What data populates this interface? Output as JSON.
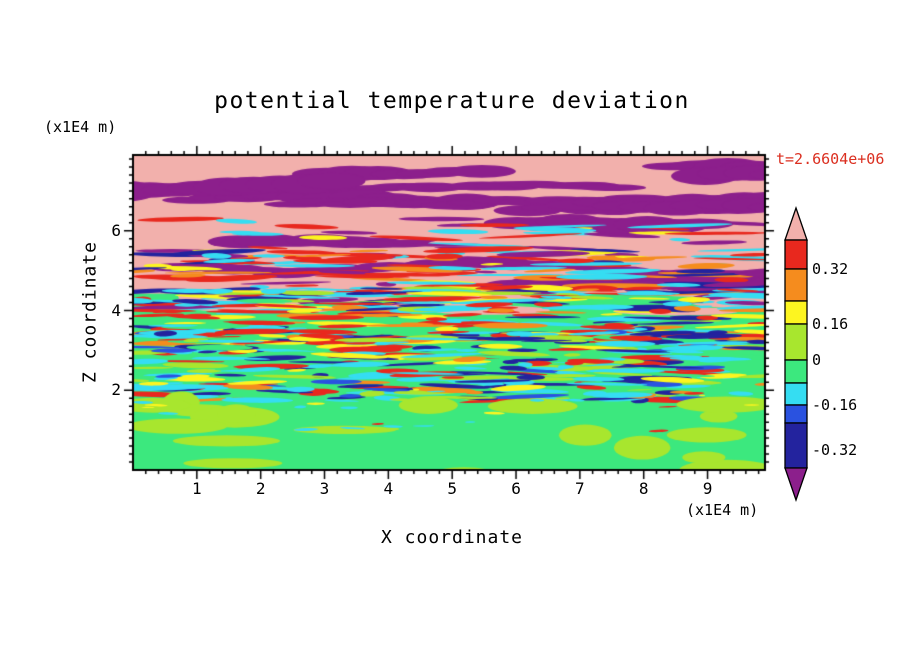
{
  "chart_data": {
    "type": "heatmap",
    "title": "potential temperature deviation",
    "xlabel": "X coordinate",
    "ylabel": "Z coordinate",
    "x_unit": "(x1E4 m)",
    "y_unit": "(x1E4 m)",
    "time_label": "t=2.6604e+06",
    "x_ticks": [
      1,
      2,
      3,
      4,
      5,
      6,
      7,
      8,
      9
    ],
    "y_ticks": [
      2,
      4,
      6
    ],
    "xlim": [
      0,
      9.9
    ],
    "ylim": [
      0,
      7.9
    ],
    "grid": false,
    "legend_position": "right-colorbar",
    "colorbar": {
      "top_arrow_color": "#f2b0ac",
      "bottom_arrow_color": "#8c1f8c",
      "segments": [
        {
          "color": "#e8281e",
          "h": 29
        },
        {
          "color": "#f58c1e",
          "h": 32
        },
        {
          "color": "#fdf520",
          "h": 23
        },
        {
          "color": "#a8e62e",
          "h": 36
        },
        {
          "color": "#3ce87e",
          "h": 23
        },
        {
          "color": "#35ddf2",
          "h": 22
        },
        {
          "color": "#2a52e0",
          "h": 18
        },
        {
          "color": "#23239e",
          "h": 45
        }
      ],
      "labels": [
        {
          "text": "0.32",
          "offset": 29
        },
        {
          "text": "0.16",
          "offset": 84
        },
        {
          "text": "0",
          "offset": 120
        },
        {
          "text": "-0.16",
          "offset": 165
        },
        {
          "text": "-0.32",
          "offset": 210
        }
      ]
    },
    "field_texture": {
      "seed": 1337,
      "background": "#3ce87e",
      "regions": [
        {
          "name": "pink-base",
          "type": "rect",
          "y0": 0.0,
          "y1": 0.44,
          "color": "#f2b0ac"
        },
        {
          "name": "pink-ragged-edge",
          "type": "blobs",
          "y0": 0.4,
          "y1": 0.5,
          "count": 26,
          "rx": [
            25,
            80
          ],
          "ry": [
            4,
            10
          ],
          "color": "#f2b0ac"
        },
        {
          "name": "purple-bands",
          "type": "bands",
          "y0": 0.02,
          "y1": 0.42,
          "count": 18,
          "len": [
            120,
            460
          ],
          "th": [
            7,
            16
          ],
          "color": "#8c1f8c"
        },
        {
          "name": "upper-wisps",
          "type": "streaks",
          "y0": 0.2,
          "y1": 0.36,
          "count": 45,
          "len": [
            20,
            110
          ],
          "th": [
            2,
            5
          ],
          "colors": [
            "#35ddf2",
            "#e8281e",
            "#fdf520",
            "#8c1f8c"
          ],
          "weights": [
            0.4,
            0.25,
            0.1,
            0.25
          ]
        },
        {
          "name": "transition-streaks",
          "type": "streaks",
          "y0": 0.3,
          "y1": 0.5,
          "count": 150,
          "len": [
            20,
            120
          ],
          "th": [
            2,
            6
          ],
          "colors": [
            "#e8281e",
            "#f58c1e",
            "#35ddf2",
            "#fdf520",
            "#8c1f8c",
            "#23239e"
          ],
          "weights": [
            0.26,
            0.15,
            0.22,
            0.09,
            0.16,
            0.12
          ]
        },
        {
          "name": "mid-upper-streaks",
          "type": "streaks",
          "y0": 0.42,
          "y1": 0.6,
          "count": 220,
          "len": [
            16,
            95
          ],
          "th": [
            2,
            6
          ],
          "colors": [
            "#e8281e",
            "#f58c1e",
            "#fdf520",
            "#35ddf2",
            "#23239e",
            "#a8e62e",
            "#3ce87e"
          ],
          "weights": [
            0.2,
            0.12,
            0.1,
            0.22,
            0.14,
            0.12,
            0.1
          ]
        },
        {
          "name": "mid-lower-streaks",
          "type": "streaks",
          "y0": 0.56,
          "y1": 0.78,
          "count": 330,
          "len": [
            14,
            85
          ],
          "th": [
            2,
            6
          ],
          "colors": [
            "#35ddf2",
            "#23239e",
            "#2a52e0",
            "#e8281e",
            "#f58c1e",
            "#fdf520",
            "#a8e62e",
            "#3ce87e"
          ],
          "weights": [
            0.26,
            0.17,
            0.06,
            0.14,
            0.07,
            0.08,
            0.12,
            0.1
          ]
        },
        {
          "name": "bottom-chartreuse-blobs",
          "type": "blobs",
          "y0": 0.78,
          "y1": 1.02,
          "count": 20,
          "rx": [
            16,
            55
          ],
          "ry": [
            4,
            12
          ],
          "color": "#a8e62e"
        },
        {
          "name": "bottom-specks",
          "type": "streaks",
          "y0": 0.74,
          "y1": 0.88,
          "count": 28,
          "len": [
            6,
            26
          ],
          "th": [
            1,
            3
          ],
          "colors": [
            "#fdf520",
            "#35ddf2",
            "#e8281e",
            "#a8e62e"
          ],
          "weights": [
            0.35,
            0.25,
            0.15,
            0.25
          ]
        }
      ]
    }
  },
  "colors": {
    "frame": "#000000",
    "text": "#000000",
    "time_label": "#db2f20",
    "background": "#ffffff"
  }
}
